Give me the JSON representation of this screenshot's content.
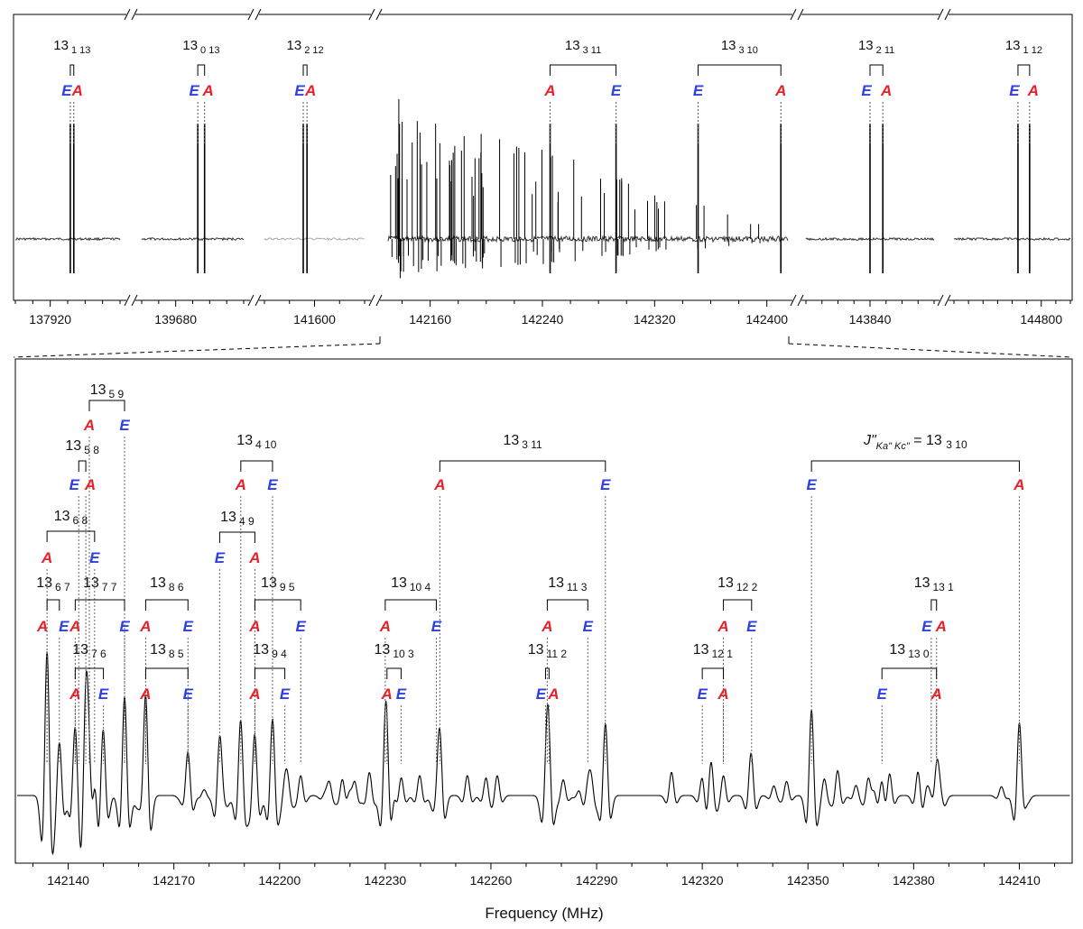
{
  "colors": {
    "A": "#e8202a",
    "E": "#2f3fe0",
    "trace": "#000000"
  },
  "chart_data": [
    {
      "type": "line",
      "panel": "top",
      "segments": [
        {
          "range": [
            137900,
            137960
          ],
          "ticks": [
            137920
          ]
        },
        {
          "range": [
            139660,
            139720
          ],
          "ticks": [
            139680
          ]
        },
        {
          "range": [
            141580,
            141620
          ],
          "ticks": [
            141600
          ]
        },
        {
          "range": [
            142130,
            142415
          ],
          "ticks": [
            142160,
            142240,
            142320,
            142400
          ]
        },
        {
          "range": [
            143800,
            143880
          ],
          "ticks": [
            143840
          ]
        },
        {
          "range": [
            144740,
            144820
          ],
          "ticks": [
            144800
          ]
        }
      ],
      "transitions": [
        {
          "J": "13",
          "Ka": "1",
          "Kc": "13",
          "pair": [
            {
              "sym": "E",
              "freq": 137931.5
            },
            {
              "sym": "A",
              "freq": 137933.5
            }
          ]
        },
        {
          "J": "13",
          "Ka": "0",
          "Kc": "13",
          "pair": [
            {
              "sym": "E",
              "freq": 139693
            },
            {
              "sym": "A",
              "freq": 139697
            }
          ]
        },
        {
          "J": "13",
          "Ka": "2",
          "Kc": "12",
          "pair": [
            {
              "sym": "E",
              "freq": 141595.5
            },
            {
              "sym": "A",
              "freq": 141597
            }
          ]
        },
        {
          "J": "13",
          "Ka": "3",
          "Kc": "11",
          "pair": [
            {
              "sym": "A",
              "freq": 142245.5
            },
            {
              "sym": "E",
              "freq": 142292.5
            }
          ]
        },
        {
          "J": "13",
          "Ka": "3",
          "Kc": "10",
          "pair": [
            {
              "sym": "E",
              "freq": 142351
            },
            {
              "sym": "A",
              "freq": 142410
            }
          ]
        },
        {
          "J": "13",
          "Ka": "2",
          "Kc": "11",
          "pair": [
            {
              "sym": "E",
              "freq": 143840
            },
            {
              "sym": "A",
              "freq": 143848
            }
          ]
        },
        {
          "J": "13",
          "Ka": "1",
          "Kc": "12",
          "pair": [
            {
              "sym": "E",
              "freq": 144784
            },
            {
              "sym": "A",
              "freq": 144792
            }
          ]
        }
      ]
    },
    {
      "type": "line",
      "panel": "bottom",
      "xlabel": "Frequency (MHz)",
      "xlim": [
        142125,
        142425
      ],
      "xticks": [
        142140,
        142170,
        142200,
        142230,
        142260,
        142290,
        142320,
        142350,
        142380,
        142410
      ],
      "annotation_prefix": "J\"",
      "annotation_sub": "Ka\" Kc\"",
      "transitions": [
        {
          "J": "13",
          "Ka": "5",
          "Kc": "9",
          "pair": [
            {
              "sym": "A",
              "freq": 142146
            },
            {
              "sym": "E",
              "freq": 142156
            }
          ]
        },
        {
          "J": "13",
          "Ka": "5",
          "Kc": "8",
          "pair": [
            {
              "sym": "E",
              "freq": 142143
            },
            {
              "sym": "A",
              "freq": 142145
            }
          ]
        },
        {
          "J": "13",
          "Ka": "4",
          "Kc": "10",
          "pair": [
            {
              "sym": "A",
              "freq": 142189
            },
            {
              "sym": "E",
              "freq": 142198
            }
          ]
        },
        {
          "J": "13",
          "Ka": "3",
          "Kc": "11",
          "pair": [
            {
              "sym": "A",
              "freq": 142245.5
            },
            {
              "sym": "E",
              "freq": 142292.5
            }
          ]
        },
        {
          "J": "13",
          "Ka": "3",
          "Kc": "10",
          "annotated": true,
          "pair": [
            {
              "sym": "E",
              "freq": 142351
            },
            {
              "sym": "A",
              "freq": 142410
            }
          ]
        },
        {
          "J": "13",
          "Ka": "6",
          "Kc": "8",
          "pair": [
            {
              "sym": "A",
              "freq": 142134
            },
            {
              "sym": "E",
              "freq": 142147.5
            }
          ]
        },
        {
          "J": "13",
          "Ka": "4",
          "Kc": "9",
          "pair": [
            {
              "sym": "E",
              "freq": 142183
            },
            {
              "sym": "A",
              "freq": 142193
            }
          ]
        },
        {
          "J": "13",
          "Ka": "6",
          "Kc": "7",
          "pair": [
            {
              "sym": "A",
              "freq": 142134
            },
            {
              "sym": "E",
              "freq": 142137.5
            }
          ]
        },
        {
          "J": "13",
          "Ka": "7",
          "Kc": "7",
          "pair": [
            {
              "sym": "A",
              "freq": 142142
            },
            {
              "sym": "E",
              "freq": 142156
            }
          ]
        },
        {
          "J": "13",
          "Ka": "8",
          "Kc": "6",
          "pair": [
            {
              "sym": "A",
              "freq": 142162
            },
            {
              "sym": "E",
              "freq": 142174
            }
          ]
        },
        {
          "J": "13",
          "Ka": "9",
          "Kc": "5",
          "pair": [
            {
              "sym": "A",
              "freq": 142193
            },
            {
              "sym": "E",
              "freq": 142206
            }
          ]
        },
        {
          "J": "13",
          "Ka": "10",
          "Kc": "4",
          "pair": [
            {
              "sym": "A",
              "freq": 142230
            },
            {
              "sym": "E",
              "freq": 142244.5
            }
          ]
        },
        {
          "J": "13",
          "Ka": "11",
          "Kc": "3",
          "pair": [
            {
              "sym": "A",
              "freq": 142276
            },
            {
              "sym": "E",
              "freq": 142287.5
            }
          ]
        },
        {
          "J": "13",
          "Ka": "12",
          "Kc": "2",
          "pair": [
            {
              "sym": "A",
              "freq": 142326
            },
            {
              "sym": "E",
              "freq": 142334
            }
          ]
        },
        {
          "J": "13",
          "Ka": "13",
          "Kc": "1",
          "pair": [
            {
              "sym": "E",
              "freq": 142385
            },
            {
              "sym": "A",
              "freq": 142386.5
            }
          ]
        },
        {
          "J": "13",
          "Ka": "7",
          "Kc": "6",
          "pair": [
            {
              "sym": "A",
              "freq": 142142
            },
            {
              "sym": "E",
              "freq": 142150
            }
          ]
        },
        {
          "J": "13",
          "Ka": "8",
          "Kc": "5",
          "pair": [
            {
              "sym": "A",
              "freq": 142162
            },
            {
              "sym": "E",
              "freq": 142174
            }
          ]
        },
        {
          "J": "13",
          "Ka": "9",
          "Kc": "4",
          "pair": [
            {
              "sym": "A",
              "freq": 142193
            },
            {
              "sym": "E",
              "freq": 142201.5
            }
          ]
        },
        {
          "J": "13",
          "Ka": "10",
          "Kc": "3",
          "pair": [
            {
              "sym": "A",
              "freq": 142230.5
            },
            {
              "sym": "E",
              "freq": 142234.5
            }
          ]
        },
        {
          "J": "13",
          "Ka": "11",
          "Kc": "2",
          "pair": [
            {
              "sym": "E",
              "freq": 142275.5
            },
            {
              "sym": "A",
              "freq": 142276.5
            }
          ]
        },
        {
          "J": "13",
          "Ka": "12",
          "Kc": "1",
          "pair": [
            {
              "sym": "E",
              "freq": 142320
            },
            {
              "sym": "A",
              "freq": 142326
            }
          ]
        },
        {
          "J": "13",
          "Ka": "13",
          "Kc": "0",
          "pair": [
            {
              "sym": "E",
              "freq": 142371
            },
            {
              "sym": "A",
              "freq": 142386.5
            }
          ]
        }
      ]
    }
  ]
}
